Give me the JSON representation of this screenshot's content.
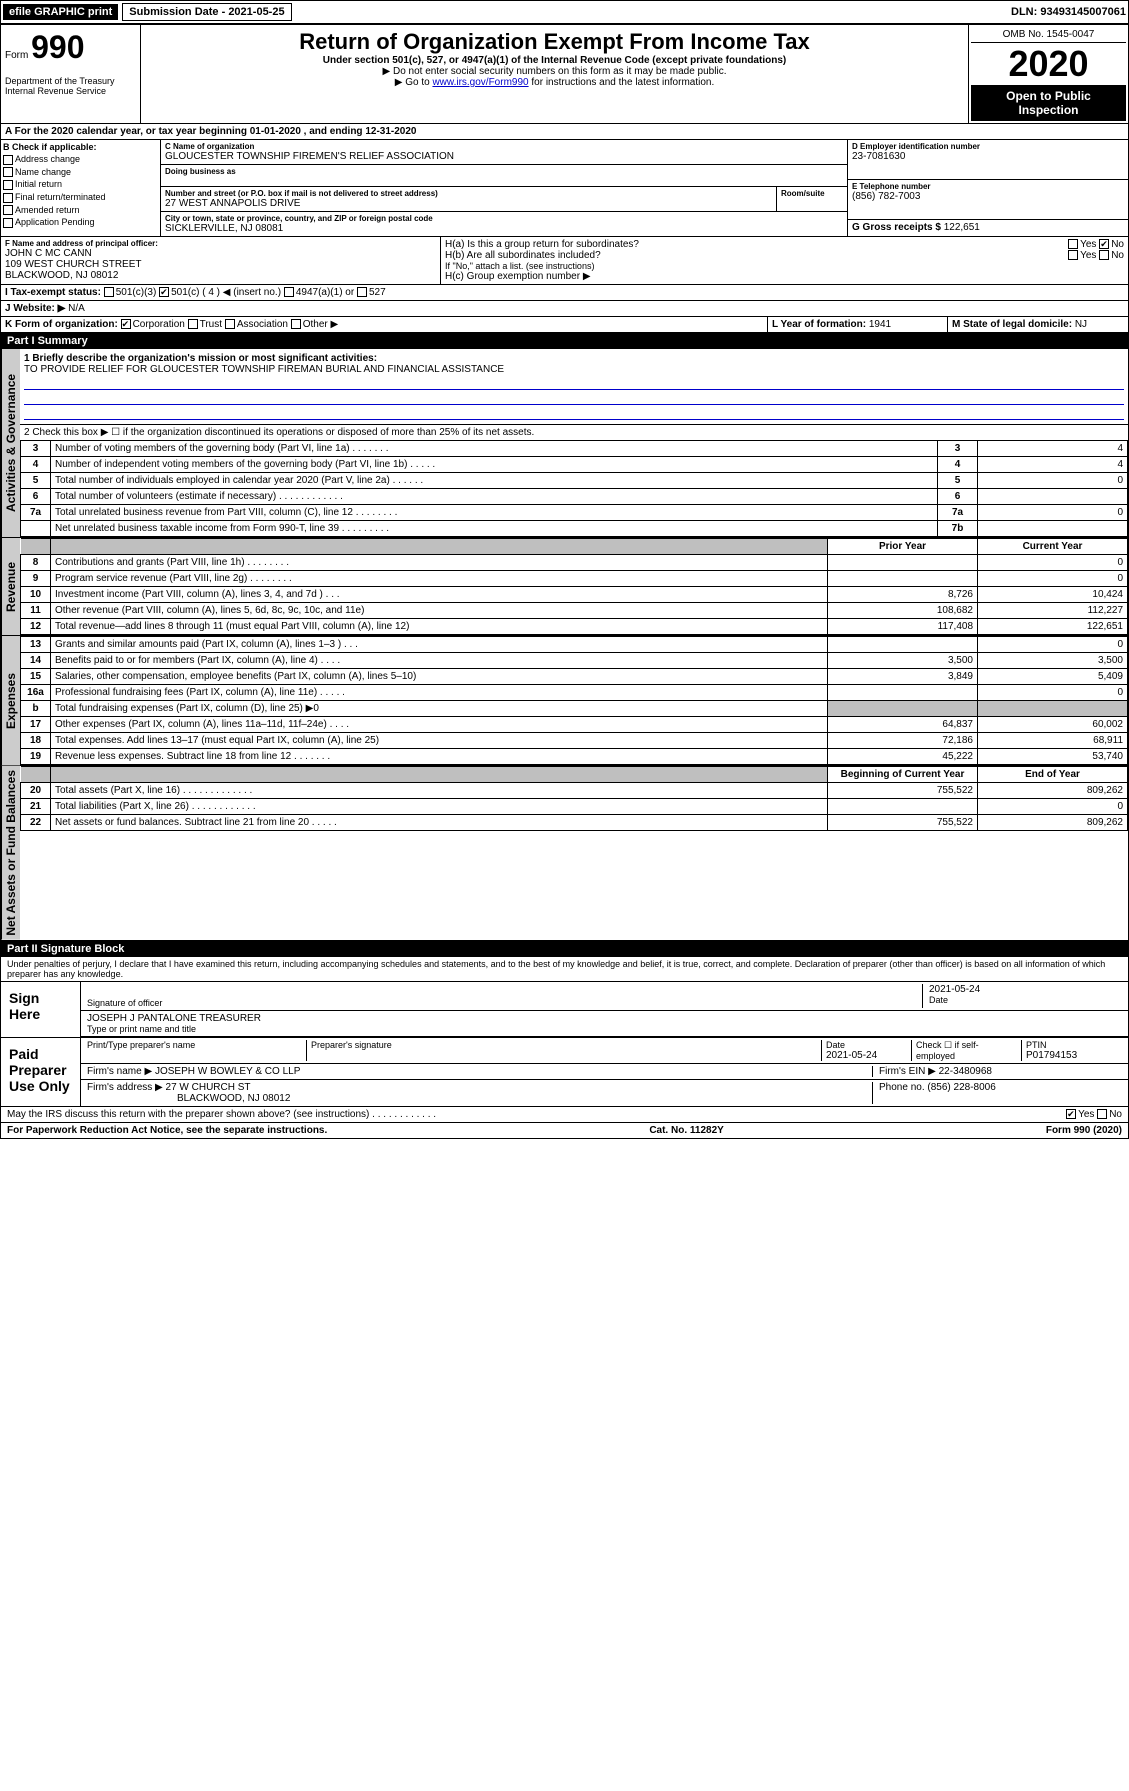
{
  "topbar": {
    "efile_label": "efile GRAPHIC print",
    "submission_label": "Submission Date - 2021-05-25",
    "dln_label": "DLN: 93493145007061"
  },
  "header": {
    "form_label": "Form",
    "form_number": "990",
    "title": "Return of Organization Exempt From Income Tax",
    "subtitle": "Under section 501(c), 527, or 4947(a)(1) of the Internal Revenue Code (except private foundations)",
    "note1": "▶ Do not enter social security numbers on this form as it may be made public.",
    "note2_pre": "▶ Go to ",
    "note2_link": "www.irs.gov/Form990",
    "note2_post": " for instructions and the latest information.",
    "dept": "Department of the Treasury\nInternal Revenue Service",
    "omb": "OMB No. 1545-0047",
    "year": "2020",
    "open_public": "Open to Public Inspection"
  },
  "period": {
    "line": "A For the 2020 calendar year, or tax year beginning 01-01-2020   , and ending 12-31-2020"
  },
  "section_b": {
    "heading": "B Check if applicable:",
    "items": [
      "Address change",
      "Name change",
      "Initial return",
      "Final return/terminated",
      "Amended return",
      "Application Pending"
    ]
  },
  "section_c": {
    "name_label": "C Name of organization",
    "name": "GLOUCESTER TOWNSHIP FIREMEN'S RELIEF ASSOCIATION",
    "dba_label": "Doing business as",
    "dba": "",
    "addr_label": "Number and street (or P.O. box if mail is not delivered to street address)",
    "addr": "27 WEST ANNAPOLIS DRIVE",
    "room_label": "Room/suite",
    "city_label": "City or town, state or province, country, and ZIP or foreign postal code",
    "city": "SICKLERVILLE, NJ  08081"
  },
  "section_d": {
    "label": "D Employer identification number",
    "value": "23-7081630"
  },
  "section_e": {
    "label": "E Telephone number",
    "value": "(856) 782-7003"
  },
  "section_g": {
    "label": "G Gross receipts $",
    "value": "122,651"
  },
  "section_f": {
    "label": "F Name and address of principal officer:",
    "name": "JOHN C MC CANN",
    "addr1": "109 WEST CHURCH STREET",
    "addr2": "BLACKWOOD, NJ  08012"
  },
  "section_h": {
    "ha_label": "H(a)  Is this a group return for subordinates?",
    "ha_yes": "Yes",
    "ha_no": "No",
    "hb_label": "H(b)  Are all subordinates included?",
    "hb_yes": "Yes",
    "hb_no": "No",
    "hb_note": "If \"No,\" attach a list. (see instructions)",
    "hc_label": "H(c)  Group exemption number ▶"
  },
  "section_i": {
    "label": "I   Tax-exempt status:",
    "c3": "501(c)(3)",
    "c_open": "501(c) ( 4 ) ◀ (insert no.)",
    "a1": "4947(a)(1) or",
    "s527": "527"
  },
  "section_j": {
    "label": "J   Website: ▶",
    "value": "N/A"
  },
  "section_k": {
    "label": "K Form of organization:",
    "corp": "Corporation",
    "trust": "Trust",
    "assoc": "Association",
    "other": "Other ▶"
  },
  "section_l": {
    "label": "L Year of formation:",
    "value": "1941"
  },
  "section_m": {
    "label": "M State of legal domicile:",
    "value": "NJ"
  },
  "part1": {
    "header": "Part I    Summary",
    "mission_label": "1  Briefly describe the organization's mission or most significant activities:",
    "mission": "TO PROVIDE RELIEF FOR GLOUCESTER TOWNSHIP FIREMAN BURIAL AND FINANCIAL ASSISTANCE",
    "line2": "2   Check this box ▶ ☐  if the organization discontinued its operations or disposed of more than 25% of its net assets.",
    "prior_year_header": "Prior Year",
    "current_year_header": "Current Year",
    "beg_year_header": "Beginning of Current Year",
    "end_year_header": "End of Year",
    "sidebars": {
      "gov": "Activities & Governance",
      "rev": "Revenue",
      "exp": "Expenses",
      "net": "Net Assets or Fund Balances"
    },
    "lines_gov": [
      {
        "n": "3",
        "t": "Number of voting members of the governing body (Part VI, line 1a)  .  .  .  .  .  .  .",
        "c": "3",
        "v": "4"
      },
      {
        "n": "4",
        "t": "Number of independent voting members of the governing body (Part VI, line 1b)  .  .  .  .  .",
        "c": "4",
        "v": "4"
      },
      {
        "n": "5",
        "t": "Total number of individuals employed in calendar year 2020 (Part V, line 2a)  .  .  .  .  .  .",
        "c": "5",
        "v": "0"
      },
      {
        "n": "6",
        "t": "Total number of volunteers (estimate if necessary)  .  .  .  .  .  .  .  .  .  .  .  .",
        "c": "6",
        "v": ""
      },
      {
        "n": "7a",
        "t": "Total unrelated business revenue from Part VIII, column (C), line 12  .  .  .  .  .  .  .  .",
        "c": "7a",
        "v": "0"
      },
      {
        "n": "",
        "t": "Net unrelated business taxable income from Form 990-T, line 39  .  .  .  .  .  .  .  .  .",
        "c": "7b",
        "v": ""
      }
    ],
    "lines_rev": [
      {
        "n": "8",
        "t": "Contributions and grants (Part VIII, line 1h)  .  .  .  .  .  .  .  .",
        "p": "",
        "c": "0"
      },
      {
        "n": "9",
        "t": "Program service revenue (Part VIII, line 2g)  .  .  .  .  .  .  .  .",
        "p": "",
        "c": "0"
      },
      {
        "n": "10",
        "t": "Investment income (Part VIII, column (A), lines 3, 4, and 7d )  .  .  .",
        "p": "8,726",
        "c": "10,424"
      },
      {
        "n": "11",
        "t": "Other revenue (Part VIII, column (A), lines 5, 6d, 8c, 9c, 10c, and 11e)",
        "p": "108,682",
        "c": "112,227"
      },
      {
        "n": "12",
        "t": "Total revenue—add lines 8 through 11 (must equal Part VIII, column (A), line 12)",
        "p": "117,408",
        "c": "122,651"
      }
    ],
    "lines_exp": [
      {
        "n": "13",
        "t": "Grants and similar amounts paid (Part IX, column (A), lines 1–3 )  .  .  .",
        "p": "",
        "c": "0"
      },
      {
        "n": "14",
        "t": "Benefits paid to or for members (Part IX, column (A), line 4)  .  .  .  .",
        "p": "3,500",
        "c": "3,500"
      },
      {
        "n": "15",
        "t": "Salaries, other compensation, employee benefits (Part IX, column (A), lines 5–10)",
        "p": "3,849",
        "c": "5,409"
      },
      {
        "n": "16a",
        "t": "Professional fundraising fees (Part IX, column (A), line 11e)  .  .  .  .  .",
        "p": "",
        "c": "0"
      },
      {
        "n": "b",
        "t": "Total fundraising expenses (Part IX, column (D), line 25) ▶0",
        "p": "",
        "c": "",
        "grey": true
      },
      {
        "n": "17",
        "t": "Other expenses (Part IX, column (A), lines 11a–11d, 11f–24e)  .  .  .  .",
        "p": "64,837",
        "c": "60,002"
      },
      {
        "n": "18",
        "t": "Total expenses. Add lines 13–17 (must equal Part IX, column (A), line 25)",
        "p": "72,186",
        "c": "68,911"
      },
      {
        "n": "19",
        "t": "Revenue less expenses. Subtract line 18 from line 12  .  .  .  .  .  .  .",
        "p": "45,222",
        "c": "53,740"
      }
    ],
    "lines_net": [
      {
        "n": "20",
        "t": "Total assets (Part X, line 16)  .  .  .  .  .  .  .  .  .  .  .  .  .",
        "p": "755,522",
        "c": "809,262"
      },
      {
        "n": "21",
        "t": "Total liabilities (Part X, line 26)  .  .  .  .  .  .  .  .  .  .  .  .",
        "p": "",
        "c": "0"
      },
      {
        "n": "22",
        "t": "Net assets or fund balances. Subtract line 21 from line 20  .  .  .  .  .",
        "p": "755,522",
        "c": "809,262"
      }
    ]
  },
  "part2": {
    "header": "Part II    Signature Block",
    "perjury": "Under penalties of perjury, I declare that I have examined this return, including accompanying schedules and statements, and to the best of my knowledge and belief, it is true, correct, and complete. Declaration of preparer (other than officer) is based on all information of which preparer has any knowledge.",
    "sign_here": "Sign Here",
    "sig_officer_label": "Signature of officer",
    "date_label": "Date",
    "sig_date": "2021-05-24",
    "officer_name": "JOSEPH J PANTALONE  TREASURER",
    "type_name_label": "Type or print name and title",
    "paid_prep": "Paid Preparer Use Only",
    "prep_name_label": "Print/Type preparer's name",
    "prep_sig_label": "Preparer's signature",
    "prep_date_label": "Date",
    "prep_date": "2021-05-24",
    "self_emp_label": "Check ☐ if self-employed",
    "ptin_label": "PTIN",
    "ptin": "P01794153",
    "firm_name_label": "Firm's name    ▶",
    "firm_name": "JOSEPH W BOWLEY & CO LLP",
    "firm_ein_label": "Firm's EIN ▶",
    "firm_ein": "22-3480968",
    "firm_addr_label": "Firm's address ▶",
    "firm_addr1": "27 W CHURCH ST",
    "firm_addr2": "BLACKWOOD, NJ  08012",
    "firm_phone_label": "Phone no.",
    "firm_phone": "(856) 228-8006",
    "discuss": "May the IRS discuss this return with the preparer shown above? (see instructions)  .  .  .  .  .  .  .  .  .  .  .  .",
    "discuss_yes": "Yes",
    "discuss_no": "No"
  },
  "footer": {
    "left": "For Paperwork Reduction Act Notice, see the separate instructions.",
    "mid": "Cat. No. 11282Y",
    "right": "Form 990 (2020)"
  }
}
